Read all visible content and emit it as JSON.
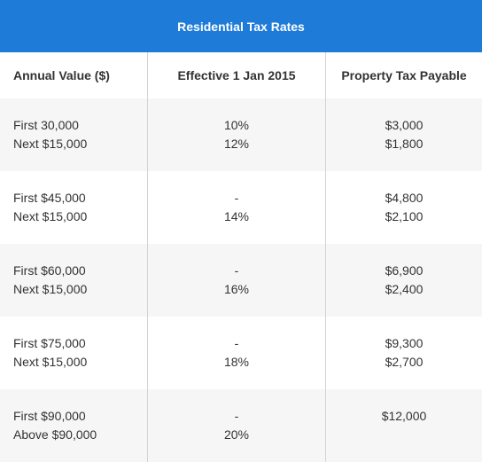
{
  "table": {
    "title": "Residential Tax Rates",
    "headers": [
      "Annual Value ($)",
      "Effective 1 Jan 2015",
      "Property Tax Payable"
    ],
    "rows": [
      {
        "annual": [
          "First 30,000",
          "Next $15,000"
        ],
        "rate": [
          "10%",
          "12%"
        ],
        "payable": [
          "$3,000",
          "$1,800"
        ]
      },
      {
        "annual": [
          "First $45,000",
          "Next $15,000"
        ],
        "rate": [
          "-",
          "14%"
        ],
        "payable": [
          "$4,800",
          "$2,100"
        ]
      },
      {
        "annual": [
          "First $60,000",
          "Next $15,000"
        ],
        "rate": [
          "-",
          "16%"
        ],
        "payable": [
          "$6,900",
          "$2,400"
        ]
      },
      {
        "annual": [
          "First $75,000",
          "Next $15,000"
        ],
        "rate": [
          "-",
          "18%"
        ],
        "payable": [
          "$9,300",
          "$2,700"
        ]
      },
      {
        "annual": [
          "First $90,000",
          "Above $90,000"
        ],
        "rate": [
          "-",
          "20%"
        ],
        "payable": [
          "$12,000",
          ""
        ]
      }
    ]
  },
  "colors": {
    "banner": "#1e7bd8",
    "stripe": "#f6f6f6",
    "divider": "#d2d2d2"
  }
}
